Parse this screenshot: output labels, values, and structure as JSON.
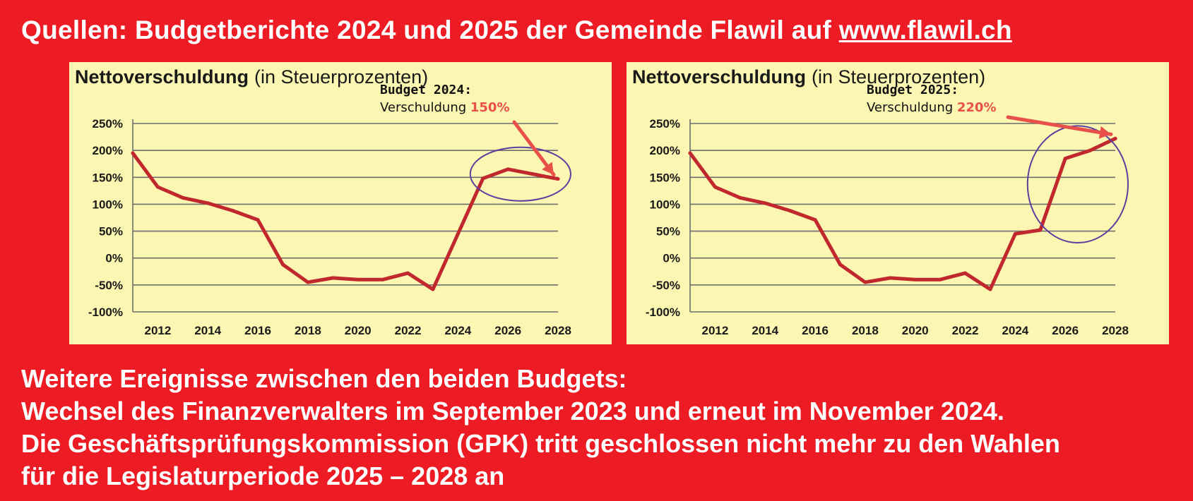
{
  "header": {
    "text": "Quellen: Budgetberichte 2024 und 2025 der Gemeinde Flawil auf ",
    "link": "www.flawil.ch"
  },
  "colors": {
    "background": "#ed1c24",
    "panel": "#fbf6b1",
    "line": "#c0282d",
    "highlight_ellipse": "#5a3fa0",
    "annotation_value": "#e8504a",
    "arrow": "#e8504a"
  },
  "chart_data": [
    {
      "type": "line",
      "title": "Nettoverschuldung",
      "subtitle": "(in Steuerprozenten)",
      "annotation": {
        "title": "Budget 2024:",
        "label": "Verschuldung ",
        "value": "150%"
      },
      "xlim": [
        2011,
        2028
      ],
      "ylim": [
        -100,
        250
      ],
      "yticks": [
        -100,
        -50,
        0,
        50,
        100,
        150,
        200,
        250
      ],
      "ytick_labels": [
        "-100%",
        "-50%",
        "0%",
        "50%",
        "100%",
        "150%",
        "200%",
        "250%"
      ],
      "xtick_labels": [
        "2012",
        "2014",
        "2016",
        "2018",
        "2020",
        "2022",
        "2024",
        "2026",
        "2028"
      ],
      "grid": true,
      "series": [
        {
          "x": [
            2011,
            2012,
            2013,
            2014,
            2015,
            2016,
            2017,
            2018,
            2019,
            2020,
            2021,
            2022,
            2023,
            2024,
            2025,
            2026,
            2027,
            2028
          ],
          "values": [
            195,
            132,
            112,
            102,
            88,
            71,
            -12,
            -45,
            -37,
            -40,
            -40,
            -28,
            -58,
            45,
            148,
            165,
            156,
            147
          ]
        }
      ]
    },
    {
      "type": "line",
      "title": "Nettoverschuldung",
      "subtitle": "(in Steuerprozenten)",
      "annotation": {
        "title": "Budget 2025:",
        "label": "Verschuldung ",
        "value": "220%"
      },
      "xlim": [
        2011,
        2028
      ],
      "ylim": [
        -100,
        250
      ],
      "yticks": [
        -100,
        -50,
        0,
        50,
        100,
        150,
        200,
        250
      ],
      "ytick_labels": [
        "-100%",
        "-50%",
        "0%",
        "50%",
        "100%",
        "150%",
        "200%",
        "250%"
      ],
      "xtick_labels": [
        "2012",
        "2014",
        "2016",
        "2018",
        "2020",
        "2022",
        "2024",
        "2026",
        "2028"
      ],
      "grid": true,
      "series": [
        {
          "x": [
            2011,
            2012,
            2013,
            2014,
            2015,
            2016,
            2017,
            2018,
            2019,
            2020,
            2021,
            2022,
            2023,
            2024,
            2025,
            2026,
            2027,
            2028
          ],
          "values": [
            195,
            132,
            112,
            102,
            88,
            71,
            -12,
            -45,
            -37,
            -40,
            -40,
            -28,
            -58,
            45,
            52,
            185,
            200,
            222
          ]
        }
      ]
    }
  ],
  "footer": {
    "lines": [
      "Weitere Ereignisse zwischen den beiden Budgets:",
      "Wechsel des Finanzverwalters im September 2023 und erneut im November 2024.",
      "Die Geschäftsprüfungskommission (GPK) tritt geschlossen nicht mehr zu den Wahlen",
      "für die Legislaturperiode 2025 – 2028 an"
    ]
  }
}
